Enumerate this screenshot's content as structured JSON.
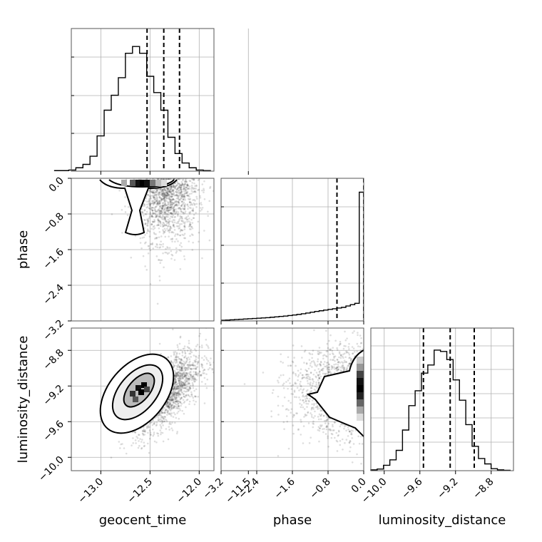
{
  "chart_data": {
    "type": "corner",
    "parameters": [
      "geocent_time",
      "phase",
      "luminosity_distance"
    ],
    "ranges": {
      "geocent_time": [
        -13.3,
        -11.85
      ],
      "phase": [
        -3.2,
        0.0
      ],
      "luminosity_distance": [
        -10.15,
        -8.55
      ]
    },
    "ticks": {
      "geocent_time": [
        "−13.0",
        "−12.5",
        "−12.0",
        "−11.5"
      ],
      "geocent_time_values": [
        -13.0,
        -12.5,
        -12.0,
        -11.5
      ],
      "phase": [
        "−3.2",
        "−2.4",
        "−1.6",
        "−0.8",
        "0.0"
      ],
      "phase_values": [
        -3.2,
        -2.4,
        -1.6,
        -0.8,
        0.0
      ],
      "luminosity_distance": [
        "−10.0",
        "−9.6",
        "−9.2",
        "−8.8"
      ],
      "luminosity_distance_values": [
        -10.0,
        -9.6,
        -9.2,
        -8.8
      ]
    },
    "quantiles": {
      "geocent_time": [
        -12.53,
        -12.36,
        -12.2
      ],
      "phase": [
        -0.6,
        0.0
      ],
      "luminosity_distance": [
        -9.56,
        -9.26,
        -8.99
      ]
    },
    "histograms": {
      "geocent_time": {
        "edges_start": -13.47,
        "bin_width": 0.072,
        "heights": [
          0.004,
          0.004,
          0.008,
          0.025,
          0.05,
          0.11,
          0.26,
          0.45,
          0.56,
          0.69,
          0.87,
          0.92,
          0.87,
          0.7,
          0.58,
          0.45,
          0.25,
          0.13,
          0.06,
          0.025,
          0.008,
          0.004
        ]
      },
      "phase": {
        "edges_start": -3.2,
        "bin_width": 0.1,
        "heights": [
          0.005,
          0.006,
          0.008,
          0.01,
          0.012,
          0.014,
          0.016,
          0.018,
          0.02,
          0.022,
          0.024,
          0.027,
          0.03,
          0.033,
          0.036,
          0.04,
          0.044,
          0.048,
          0.053,
          0.058,
          0.064,
          0.07,
          0.075,
          0.08,
          0.085,
          0.09,
          0.095,
          0.1,
          0.11,
          0.12,
          0.13,
          0.95
        ]
      },
      "luminosity_distance": {
        "edges_start": -10.15,
        "bin_width": 0.071,
        "heights": [
          0.006,
          0.012,
          0.04,
          0.08,
          0.15,
          0.3,
          0.48,
          0.59,
          0.72,
          0.78,
          0.89,
          0.88,
          0.82,
          0.67,
          0.52,
          0.34,
          0.18,
          0.09,
          0.05,
          0.015,
          0.006,
          0.003
        ]
      }
    },
    "grid": true
  },
  "labels": {
    "x_geocent": "geocent_time",
    "x_phase": "phase",
    "x_lumdist": "luminosity_distance",
    "y_phase": "phase",
    "y_lumdist": "luminosity_distance"
  }
}
